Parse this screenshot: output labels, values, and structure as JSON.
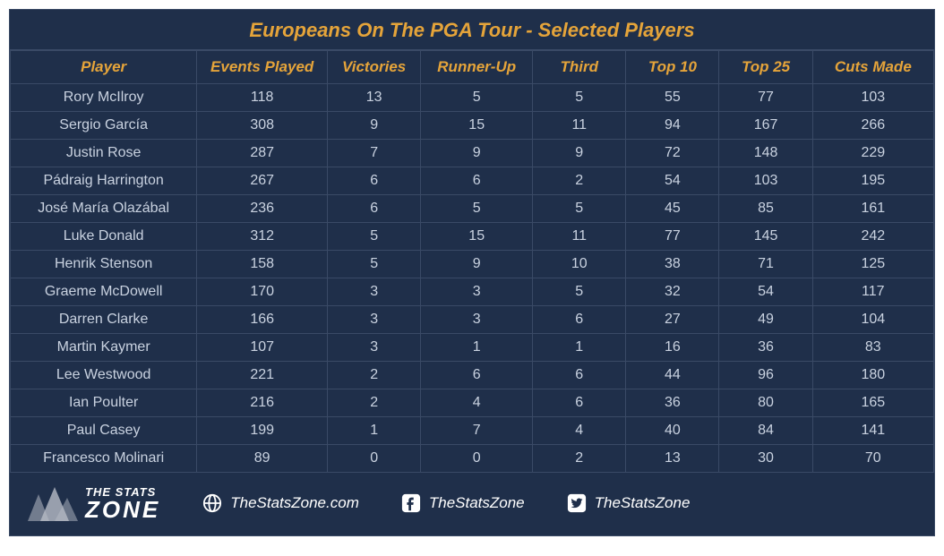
{
  "title": "Europeans On The PGA Tour - Selected Players",
  "colors": {
    "background": "#1f2f4a",
    "border": "#3a4a66",
    "accent": "#e5a43a",
    "body_text": "#c9d2e0",
    "footer_text": "#ffffff",
    "logo_fill": "#b6bcc6"
  },
  "typography": {
    "title_fontsize": 22,
    "header_fontsize": 17,
    "cell_fontsize": 16,
    "footer_fontsize": 17
  },
  "table": {
    "columns": [
      "Player",
      "Events Played",
      "Victories",
      "Runner-Up",
      "Third",
      "Top 10",
      "Top 25",
      "Cuts Made"
    ],
    "rows": [
      [
        "Rory McIlroy",
        "118",
        "13",
        "5",
        "5",
        "55",
        "77",
        "103"
      ],
      [
        "Sergio García",
        "308",
        "9",
        "15",
        "11",
        "94",
        "167",
        "266"
      ],
      [
        "Justin Rose",
        "287",
        "7",
        "9",
        "9",
        "72",
        "148",
        "229"
      ],
      [
        "Pádraig Harrington",
        "267",
        "6",
        "6",
        "2",
        "54",
        "103",
        "195"
      ],
      [
        "José María Olazábal",
        "236",
        "6",
        "5",
        "5",
        "45",
        "85",
        "161"
      ],
      [
        "Luke Donald",
        "312",
        "5",
        "15",
        "11",
        "77",
        "145",
        "242"
      ],
      [
        "Henrik Stenson",
        "158",
        "5",
        "9",
        "10",
        "38",
        "71",
        "125"
      ],
      [
        "Graeme McDowell",
        "170",
        "3",
        "3",
        "5",
        "32",
        "54",
        "117"
      ],
      [
        "Darren Clarke",
        "166",
        "3",
        "3",
        "6",
        "27",
        "49",
        "104"
      ],
      [
        "Martin Kaymer",
        "107",
        "3",
        "1",
        "1",
        "16",
        "36",
        "83"
      ],
      [
        "Lee Westwood",
        "221",
        "2",
        "6",
        "6",
        "44",
        "96",
        "180"
      ],
      [
        "Ian Poulter",
        "216",
        "2",
        "4",
        "6",
        "36",
        "80",
        "165"
      ],
      [
        "Paul Casey",
        "199",
        "1",
        "7",
        "4",
        "40",
        "84",
        "141"
      ],
      [
        "Francesco Molinari",
        "89",
        "0",
        "0",
        "2",
        "13",
        "30",
        "70"
      ]
    ]
  },
  "footer": {
    "logo_line1": "THE STATS",
    "logo_line2": "ZONE",
    "website": "TheStatsZone.com",
    "facebook": "TheStatsZone",
    "twitter": "TheStatsZone"
  }
}
